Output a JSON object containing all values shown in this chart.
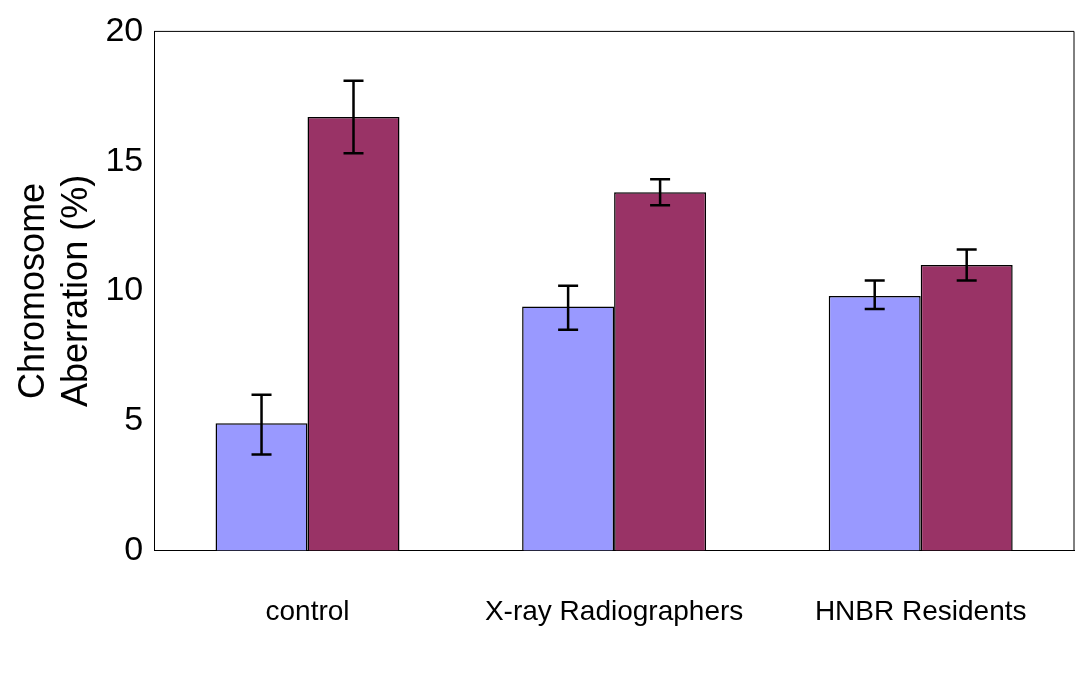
{
  "chart_data": {
    "type": "bar",
    "ylabel": "Chromosome Aberration (%)",
    "categories": [
      "control",
      "X-ray Radiographers",
      "HNBR Residents"
    ],
    "series": [
      {
        "color": "#9999ff",
        "values": [
          4.9,
          9.4,
          9.8
        ],
        "errors": [
          [
            3.7,
            6.0
          ],
          [
            8.5,
            10.2
          ],
          [
            9.3,
            10.4
          ]
        ]
      },
      {
        "color": "#993366",
        "values": [
          16.7,
          13.8,
          11.0
        ],
        "errors": [
          [
            15.3,
            18.1
          ],
          [
            13.3,
            14.3
          ],
          [
            10.4,
            11.6
          ]
        ]
      }
    ],
    "ylim": [
      0,
      20
    ],
    "yticks": [
      0,
      5,
      10,
      15,
      20
    ],
    "grid": false,
    "legend": false
  }
}
